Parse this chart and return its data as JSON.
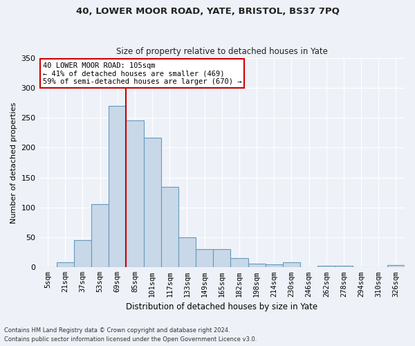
{
  "title1": "40, LOWER MOOR ROAD, YATE, BRISTOL, BS37 7PQ",
  "title2": "Size of property relative to detached houses in Yate",
  "xlabel": "Distribution of detached houses by size in Yate",
  "ylabel": "Number of detached properties",
  "categories": [
    "5sqm",
    "21sqm",
    "37sqm",
    "53sqm",
    "69sqm",
    "85sqm",
    "101sqm",
    "117sqm",
    "133sqm",
    "149sqm",
    "165sqm",
    "182sqm",
    "198sqm",
    "214sqm",
    "230sqm",
    "246sqm",
    "262sqm",
    "278sqm",
    "294sqm",
    "310sqm",
    "326sqm"
  ],
  "values": [
    0,
    9,
    45,
    105,
    270,
    245,
    217,
    135,
    50,
    30,
    30,
    15,
    6,
    5,
    8,
    0,
    3,
    3,
    0,
    0,
    4
  ],
  "bar_color": "#c8d8e8",
  "bar_edge_color": "#6699bb",
  "vline_color": "#cc0000",
  "vline_bar_index": 4,
  "annotation_text": "40 LOWER MOOR ROAD: 105sqm\n← 41% of detached houses are smaller (469)\n59% of semi-detached houses are larger (670) →",
  "annotation_box_color": "#ffffff",
  "annotation_box_edge_color": "#cc0000",
  "bg_color": "#eef2f8",
  "grid_color": "#ffffff",
  "footnote1": "Contains HM Land Registry data © Crown copyright and database right 2024.",
  "footnote2": "Contains public sector information licensed under the Open Government Licence v3.0.",
  "ylim": [
    0,
    350
  ],
  "yticks": [
    0,
    50,
    100,
    150,
    200,
    250,
    300,
    350
  ]
}
